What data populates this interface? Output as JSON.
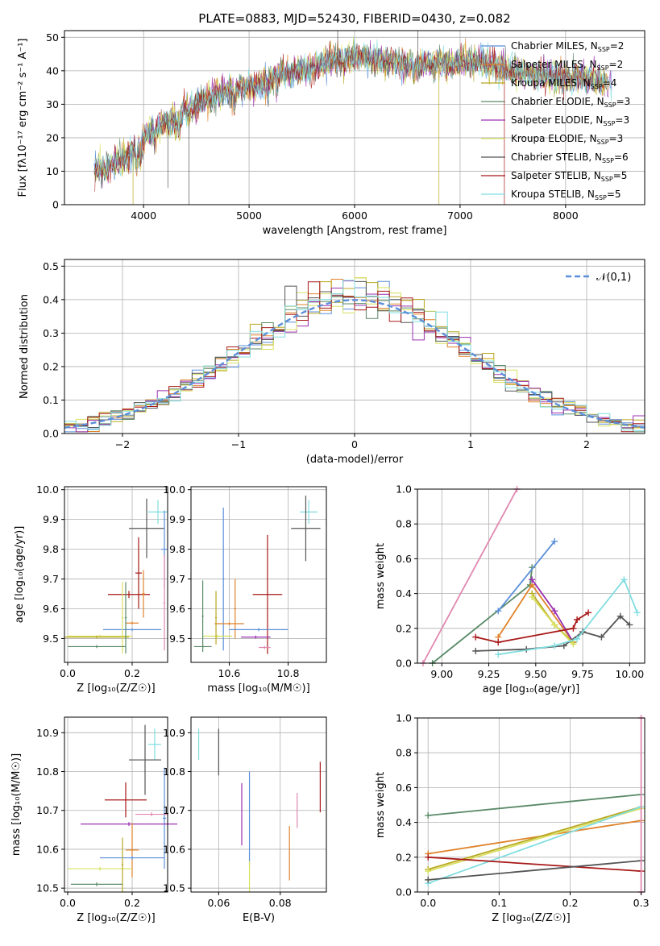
{
  "title": "PLATE=0883, MJD=52430, FIBERID=0430, z=0.082",
  "colors": {
    "Chabrier MILES": "#5b8fd9",
    "Salpeter MILES": "#e0822a",
    "Kroupa MILES": "#b8a820",
    "Chabrier ELODIE": "#5a8a68",
    "Salpeter ELODIE": "#9a30b0",
    "Kroupa ELODIE": "#d8e060",
    "Chabrier STELIB": "#555555",
    "Salpeter STELIB": "#a81818",
    "Kroupa STELIB": "#80dde0",
    "extra pink": "#e088b0"
  },
  "chart_data": [
    {
      "type": "line",
      "xlabel": "wavelength [Angstrom, rest frame]",
      "ylabel": "Flux [fλ10⁻¹⁷ erg cm⁻² s⁻¹ A⁻¹]",
      "xlim": [
        3250,
        8750
      ],
      "ylim": [
        0,
        52
      ],
      "xticks": [
        4000,
        5000,
        6000,
        7000,
        8000
      ],
      "yticks": [
        0,
        10,
        20,
        30,
        40,
        50
      ],
      "legend_position": "right",
      "legend": [
        {
          "label": "Chabrier MILES, N",
          "sub": "SSP",
          "tail": "=2"
        },
        {
          "label": "Salpeter MILES, N",
          "sub": "SSP",
          "tail": "=2"
        },
        {
          "label": "Kroupa MILES, N",
          "sub": "SSP",
          "tail": "=4"
        },
        {
          "label": "Chabrier ELODIE, N",
          "sub": "SSP",
          "tail": "=3"
        },
        {
          "label": "Salpeter ELODIE, N",
          "sub": "SSP",
          "tail": "=3"
        },
        {
          "label": "Kroupa ELODIE, N",
          "sub": "SSP",
          "tail": "=3"
        },
        {
          "label": "Chabrier STELIB, N",
          "sub": "SSP",
          "tail": "=6"
        },
        {
          "label": "Salpeter STELIB, N",
          "sub": "SSP",
          "tail": "=5"
        },
        {
          "label": "Kroupa STELIB, N",
          "sub": "SSP",
          "tail": "=5"
        }
      ],
      "continuum": [
        [
          3550,
          10
        ],
        [
          3700,
          12
        ],
        [
          3850,
          14
        ],
        [
          3950,
          18
        ],
        [
          4100,
          23
        ],
        [
          4300,
          26
        ],
        [
          4500,
          30
        ],
        [
          4700,
          33
        ],
        [
          4900,
          35
        ],
        [
          5100,
          36
        ],
        [
          5300,
          39
        ],
        [
          5500,
          40
        ],
        [
          5700,
          42
        ],
        [
          5900,
          44
        ],
        [
          6100,
          44
        ],
        [
          6300,
          43
        ],
        [
          6500,
          42
        ],
        [
          6700,
          42
        ],
        [
          6900,
          42
        ],
        [
          7100,
          43
        ],
        [
          7300,
          42
        ],
        [
          7500,
          40
        ],
        [
          7700,
          39
        ],
        [
          7900,
          38
        ],
        [
          8100,
          38
        ],
        [
          8300,
          37
        ],
        [
          8400,
          36
        ]
      ]
    },
    {
      "type": "histogram",
      "xlabel": "(data-model)/error",
      "ylabel": "Normed distribution",
      "xlim": [
        -2.5,
        2.5
      ],
      "ylim": [
        0,
        0.52
      ],
      "xticks": [
        -2,
        -1,
        0,
        1,
        2
      ],
      "yticks": [
        0.0,
        0.1,
        0.2,
        0.3,
        0.4,
        0.5
      ],
      "bin_width": 0.1,
      "legend_label": "𝒩(0,1)",
      "legend_position": "top-right"
    },
    {
      "type": "scatter",
      "xlabel": "Z [log₁₀(Z/Z☉)]",
      "ylabel": "age [log₁₀(age/yr)]",
      "xlim": [
        -0.01,
        0.31
      ],
      "ylim": [
        9.42,
        10.01
      ],
      "xticks": [
        0.0,
        0.2
      ],
      "yticks": [
        9.5,
        9.6,
        9.7,
        9.8,
        9.9,
        10.0
      ],
      "points": [
        {
          "series": "Kroupa STELIB",
          "x": 0.28,
          "y": 9.925,
          "ex": 0.03,
          "ey": 0.04
        },
        {
          "series": "Chabrier STELIB",
          "x": 0.245,
          "y": 9.87,
          "ex": 0.055,
          "ey": 0.1
        },
        {
          "series": "Chabrier MILES",
          "x": 0.3,
          "y": 9.8,
          "ex": 0.01,
          "ey": 0.13
        },
        {
          "series": "Salpeter STELIB",
          "x": 0.22,
          "y": 9.72,
          "ex": 0.01,
          "ey": 0.12
        },
        {
          "series": "Salpeter STELIB",
          "x": 0.19,
          "y": 9.648,
          "ex": 0.065,
          "ey": 0.012
        },
        {
          "series": "Salpeter MILES",
          "x": 0.235,
          "y": 9.65,
          "ex": 0.005,
          "ey": 0.08
        },
        {
          "series": "Salpeter MILES",
          "x": 0.2,
          "y": 9.552,
          "ex": 0.02,
          "ey": 0.005
        },
        {
          "series": "Chabrier MILES",
          "x": 0.2,
          "y": 9.53,
          "ex": 0.09,
          "ey": 0.005
        },
        {
          "series": "Kroupa ELODIE",
          "x": 0.1,
          "y": 9.508,
          "ex": 0.1,
          "ey": 0.005
        },
        {
          "series": "Kroupa MILES",
          "x": 0.09,
          "y": 9.505,
          "ex": 0.1,
          "ey": 0.005
        },
        {
          "series": "Kroupa ELODIE",
          "x": 0.17,
          "y": 9.57,
          "ex": 0.003,
          "ey": 0.12
        },
        {
          "series": "Chabrier ELODIE",
          "x": 0.18,
          "y": 9.57,
          "ex": 0.003,
          "ey": 0.12
        },
        {
          "series": "Chabrier ELODIE",
          "x": 0.09,
          "y": 9.473,
          "ex": 0.09,
          "ey": 0.005
        },
        {
          "series": "extra pink",
          "x": 0.3,
          "y": 9.62,
          "ex": 0.003,
          "ey": 0.16
        }
      ]
    },
    {
      "type": "scatter",
      "xlabel": "mass [log₁₀(M/M☉)]",
      "ylabel": "",
      "xlim": [
        10.47,
        10.93
      ],
      "ylim": [
        9.42,
        10.01
      ],
      "xticks": [
        10.6,
        10.8
      ],
      "yticks": [
        9.5,
        9.6,
        9.7,
        9.8,
        9.9,
        10.0
      ],
      "points": [
        {
          "series": "Kroupa STELIB",
          "x": 10.87,
          "y": 9.925,
          "ex": 0.03,
          "ey": 0.04
        },
        {
          "series": "Chabrier STELIB",
          "x": 10.86,
          "y": 9.87,
          "ex": 0.05,
          "ey": 0.11
        },
        {
          "series": "Salpeter STELIB",
          "x": 10.73,
          "y": 9.648,
          "ex": 0.05,
          "ey": 0.2
        },
        {
          "series": "Chabrier MILES",
          "x": 10.58,
          "y": 9.7,
          "ex": 0.003,
          "ey": 0.24
        },
        {
          "series": "Salpeter MILES",
          "x": 10.6,
          "y": 9.55,
          "ex": 0.05,
          "ey": 0.005
        },
        {
          "series": "Salpeter MILES",
          "x": 10.62,
          "y": 9.6,
          "ex": 0.003,
          "ey": 0.1
        },
        {
          "series": "Chabrier MILES",
          "x": 10.7,
          "y": 9.53,
          "ex": 0.1,
          "ey": 0.005
        },
        {
          "series": "Kroupa ELODIE",
          "x": 10.56,
          "y": 9.508,
          "ex": 0.05,
          "ey": 0.005
        },
        {
          "series": "Chabrier ELODIE",
          "x": 10.51,
          "y": 9.575,
          "ex": 0.003,
          "ey": 0.12
        },
        {
          "series": "Chabrier ELODIE",
          "x": 10.51,
          "y": 9.473,
          "ex": 0.03,
          "ey": 0.005
        },
        {
          "series": "Salpeter ELODIE",
          "x": 10.69,
          "y": 9.505,
          "ex": 0.05,
          "ey": 0.005
        },
        {
          "series": "extra pink",
          "x": 10.72,
          "y": 9.47,
          "ex": 0.02,
          "ey": 0.005
        },
        {
          "series": "Kroupa MILES",
          "x": 10.555,
          "y": 9.57,
          "ex": 0.003,
          "ey": 0.09
        }
      ]
    },
    {
      "type": "line",
      "xlabel": "age [log₁₀(age/yr)]",
      "ylabel": "mass weight",
      "xlim": [
        8.87,
        10.08
      ],
      "ylim": [
        0,
        1.0
      ],
      "xticks": [
        9.0,
        9.25,
        9.5,
        9.75,
        10.0
      ],
      "yticks": [
        0.0,
        0.2,
        0.4,
        0.6,
        0.8,
        1.0
      ],
      "series": [
        {
          "name": "extra pink",
          "x": [
            8.9,
            9.4
          ],
          "y": [
            0.0,
            1.0
          ]
        },
        {
          "name": "Chabrier ELODIE",
          "x": [
            8.95,
            9.47,
            9.48
          ],
          "y": [
            0.0,
            0.45,
            0.55
          ]
        },
        {
          "name": "Chabrier MILES",
          "x": [
            9.3,
            9.6
          ],
          "y": [
            0.3,
            0.7
          ]
        },
        {
          "name": "Salpeter MILES",
          "x": [
            9.3,
            9.48,
            9.7
          ],
          "y": [
            0.15,
            0.45,
            0.12
          ]
        },
        {
          "name": "Salpeter ELODIE",
          "x": [
            9.48,
            9.6,
            9.7
          ],
          "y": [
            0.48,
            0.3,
            0.12
          ]
        },
        {
          "name": "Kroupa MILES",
          "x": [
            9.48,
            9.6,
            9.7
          ],
          "y": [
            0.4,
            0.22,
            0.12
          ]
        },
        {
          "name": "Kroupa ELODIE",
          "x": [
            9.48,
            9.6,
            9.7
          ],
          "y": [
            0.38,
            0.22,
            0.11
          ]
        },
        {
          "name": "Salpeter STELIB",
          "x": [
            9.18,
            9.3,
            9.7,
            9.72,
            9.78
          ],
          "y": [
            0.15,
            0.12,
            0.2,
            0.25,
            0.29
          ]
        },
        {
          "name": "Chabrier STELIB",
          "x": [
            9.18,
            9.45,
            9.65,
            9.75,
            9.85,
            9.95,
            10.0
          ],
          "y": [
            0.07,
            0.08,
            0.1,
            0.18,
            0.15,
            0.27,
            0.22
          ]
        },
        {
          "name": "Kroupa STELIB",
          "x": [
            9.3,
            9.6,
            9.72,
            9.97,
            10.04
          ],
          "y": [
            0.05,
            0.1,
            0.14,
            0.48,
            0.29
          ]
        }
      ]
    },
    {
      "type": "scatter",
      "xlabel": "Z [log₁₀(Z/Z☉)]",
      "ylabel": "mass [log₁₀(M/M☉)]",
      "xlim": [
        -0.01,
        0.31
      ],
      "ylim": [
        10.49,
        10.94
      ],
      "xticks": [
        0.0,
        0.2
      ],
      "yticks": [
        10.5,
        10.6,
        10.7,
        10.8,
        10.9
      ],
      "points": [
        {
          "series": "Kroupa STELIB",
          "x": 0.27,
          "y": 10.87,
          "ex": 0.02,
          "ey": 0.04
        },
        {
          "series": "Chabrier STELIB",
          "x": 0.24,
          "y": 10.83,
          "ex": 0.05,
          "ey": 0.09
        },
        {
          "series": "Chabrier MILES",
          "x": 0.3,
          "y": 10.68,
          "ex": 0.005,
          "ey": 0.13
        },
        {
          "series": "Salpeter STELIB",
          "x": 0.18,
          "y": 10.727,
          "ex": 0.065,
          "ey": 0.045
        },
        {
          "series": "Salpeter ELODIE",
          "x": 0.19,
          "y": 10.665,
          "ex": 0.15,
          "ey": 0.005
        },
        {
          "series": "extra pink",
          "x": 0.26,
          "y": 10.69,
          "ex": 0.05,
          "ey": 0.005
        },
        {
          "series": "Salpeter MILES",
          "x": 0.2,
          "y": 10.598,
          "ex": 0.02,
          "ey": 0.07
        },
        {
          "series": "Chabrier MILES",
          "x": 0.2,
          "y": 10.578,
          "ex": 0.1,
          "ey": 0.005
        },
        {
          "series": "Kroupa ELODIE",
          "x": 0.1,
          "y": 10.55,
          "ex": 0.1,
          "ey": 0.005
        },
        {
          "series": "Kroupa MILES",
          "x": 0.17,
          "y": 10.56,
          "ex": 0.003,
          "ey": 0.07
        },
        {
          "series": "Chabrier ELODIE",
          "x": 0.09,
          "y": 10.51,
          "ex": 0.08,
          "ey": 0.005
        }
      ]
    },
    {
      "type": "scatter",
      "xlabel": "E(B-V)",
      "ylabel": "",
      "xlim": [
        0.051,
        0.095
      ],
      "ylim": [
        10.49,
        10.94
      ],
      "xticks": [
        0.06,
        0.08
      ],
      "yticks": [
        10.5,
        10.6,
        10.7,
        10.8,
        10.9
      ],
      "points": [
        {
          "series": "Kroupa STELIB",
          "x": 0.0535,
          "y": 10.87,
          "ey": 0.04
        },
        {
          "series": "Chabrier STELIB",
          "x": 0.06,
          "y": 10.85,
          "ey": 0.06
        },
        {
          "series": "Chabrier MILES",
          "x": 0.07,
          "y": 10.68,
          "ey": 0.12
        },
        {
          "series": "Salpeter ELODIE",
          "x": 0.0675,
          "y": 10.69,
          "ey": 0.08
        },
        {
          "series": "Kroupa ELODIE",
          "x": 0.07,
          "y": 10.53,
          "ey": 0.04
        },
        {
          "series": "Salpeter MILES",
          "x": 0.083,
          "y": 10.59,
          "ey": 0.07
        },
        {
          "series": "extra pink",
          "x": 0.0855,
          "y": 10.7,
          "ey": 0.045
        },
        {
          "series": "Salpeter STELIB",
          "x": 0.093,
          "y": 10.76,
          "ey": 0.065
        }
      ]
    },
    {
      "type": "line",
      "xlabel": "Z [log₁₀(Z/Z☉)]",
      "ylabel": "mass weight",
      "xlim": [
        -0.015,
        0.305
      ],
      "ylim": [
        0,
        1.0
      ],
      "xticks": [
        0.0,
        0.1,
        0.2,
        0.3
      ],
      "yticks": [
        0.0,
        0.2,
        0.4,
        0.6,
        0.8,
        1.0
      ],
      "series": [
        {
          "name": "Chabrier ELODIE",
          "x": [
            0.0,
            0.3
          ],
          "y": [
            0.44,
            0.56
          ]
        },
        {
          "name": "Salpeter MILES",
          "x": [
            0.0,
            0.3
          ],
          "y": [
            0.22,
            0.41
          ]
        },
        {
          "name": "Kroupa MILES",
          "x": [
            0.0,
            0.3
          ],
          "y": [
            0.13,
            0.49
          ]
        },
        {
          "name": "Kroupa ELODIE",
          "x": [
            0.0,
            0.3
          ],
          "y": [
            0.12,
            0.48
          ]
        },
        {
          "name": "Kroupa STELIB",
          "x": [
            0.0,
            0.3
          ],
          "y": [
            0.05,
            0.49
          ]
        },
        {
          "name": "Salpeter STELIB",
          "x": [
            0.0,
            0.3
          ],
          "y": [
            0.2,
            0.12
          ]
        },
        {
          "name": "Chabrier STELIB",
          "x": [
            0.0,
            0.3
          ],
          "y": [
            0.07,
            0.18
          ]
        },
        {
          "name": "extra pink",
          "x": [
            0.3,
            0.3
          ],
          "y": [
            0.0,
            1.0
          ]
        }
      ]
    }
  ]
}
